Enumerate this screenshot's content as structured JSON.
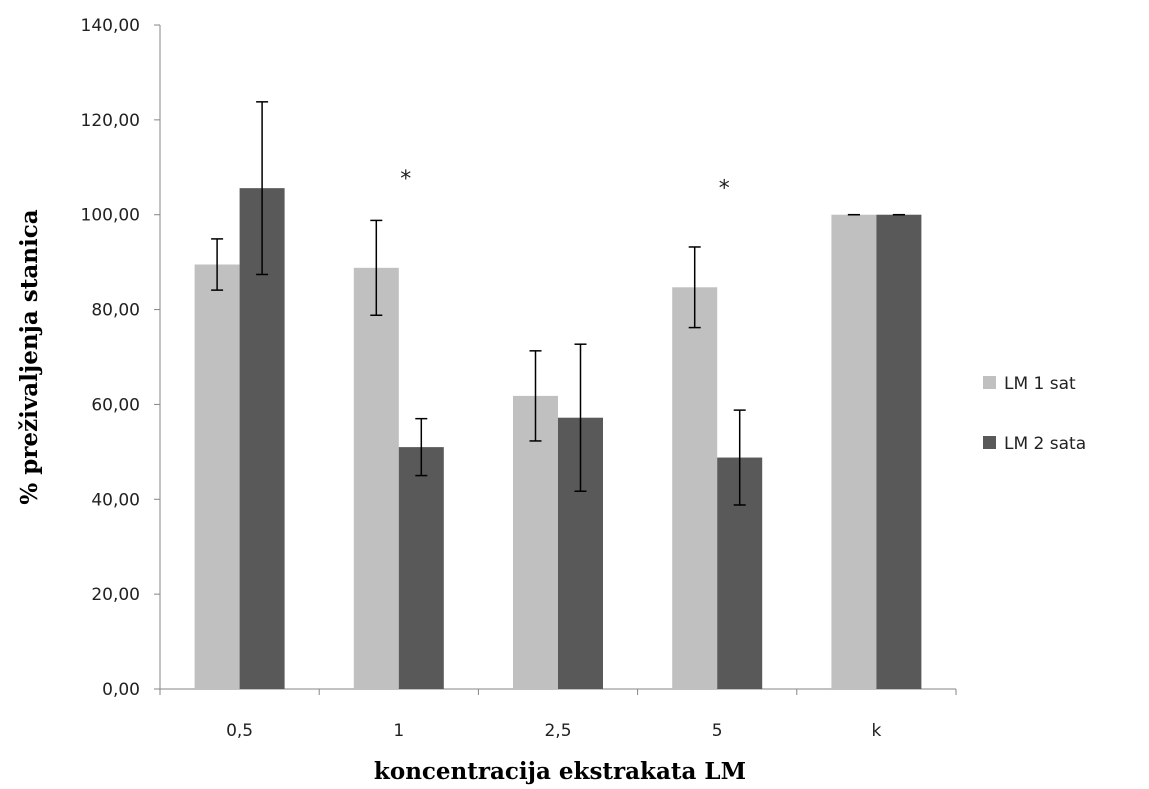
{
  "chart_data": {
    "type": "bar",
    "title": "",
    "xlabel": "koncentracija ekstrakata LM",
    "ylabel": "% preživaljenja stanica",
    "categories": [
      "0,5",
      "1",
      "2,5",
      "5",
      "k"
    ],
    "ylim": [
      0,
      140
    ],
    "yticks": [
      "0,00",
      "20,00",
      "40,00",
      "60,00",
      "80,00",
      "100,00",
      "120,00",
      "140,00"
    ],
    "yticks_values": [
      0,
      20,
      40,
      60,
      80,
      100,
      120,
      140
    ],
    "grid": false,
    "legend_position": "right",
    "series": [
      {
        "name": "LM 1 sat",
        "color": "#c0c0c0",
        "values": [
          89.5,
          88.8,
          61.8,
          84.7,
          100
        ],
        "errors": [
          5.4,
          10.0,
          9.5,
          8.5,
          0
        ]
      },
      {
        "name": "LM 2 sata",
        "color": "#595959",
        "values": [
          105.6,
          51.0,
          57.2,
          48.8,
          100
        ],
        "errors": [
          18.2,
          6.0,
          15.5,
          10.0,
          0
        ]
      }
    ],
    "annotations": [
      {
        "text": "*",
        "category": "1",
        "value": 108
      },
      {
        "text": "*",
        "category": "5",
        "value": 106
      }
    ]
  }
}
